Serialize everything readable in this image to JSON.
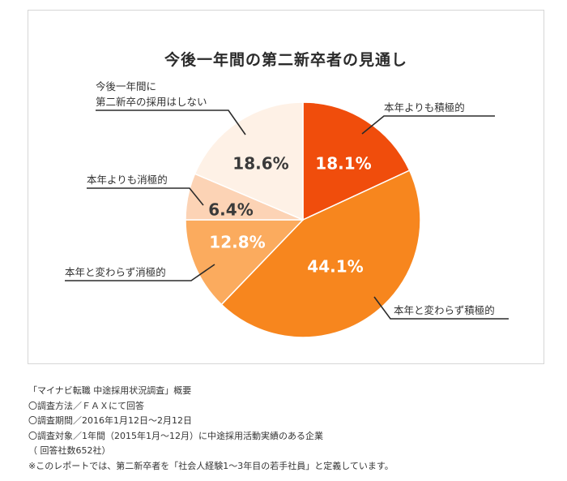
{
  "chart_data": {
    "type": "pie",
    "title": "今後一年間の第二新卒者の見通し",
    "slices": [
      {
        "label": "本年よりも積極的",
        "value": 18.1,
        "display": "18.1%",
        "color": "#f04d0c"
      },
      {
        "label": "本年と変わらず積極的",
        "value": 44.1,
        "display": "44.1%",
        "color": "#f7861e"
      },
      {
        "label": "本年と変わらず消極的",
        "value": 12.8,
        "display": "12.8%",
        "color": "#fbab5e"
      },
      {
        "label": "本年よりも消極的",
        "value": 6.4,
        "display": "6.4%",
        "color": "#fcd3b5"
      },
      {
        "label": "今後一年間に\n第二新卒の採用はしない",
        "value": 18.6,
        "display": "18.6%",
        "color": "#fef1e6"
      }
    ]
  },
  "notes": [
    "「マイナビ転職 中途採用状況調査」概要",
    "〇調査方法／ＦＡＸにて回答",
    "〇調査期間／2016年1月12日～2月12日",
    "〇調査対象／1年間（2015年1月～12月）に中途採用活動実績のある企業",
    "（ 回答社数652社）",
    "※このレポートでは、第二新卒者を「社会人経験1～3年目の若手社員」と定義しています。"
  ]
}
